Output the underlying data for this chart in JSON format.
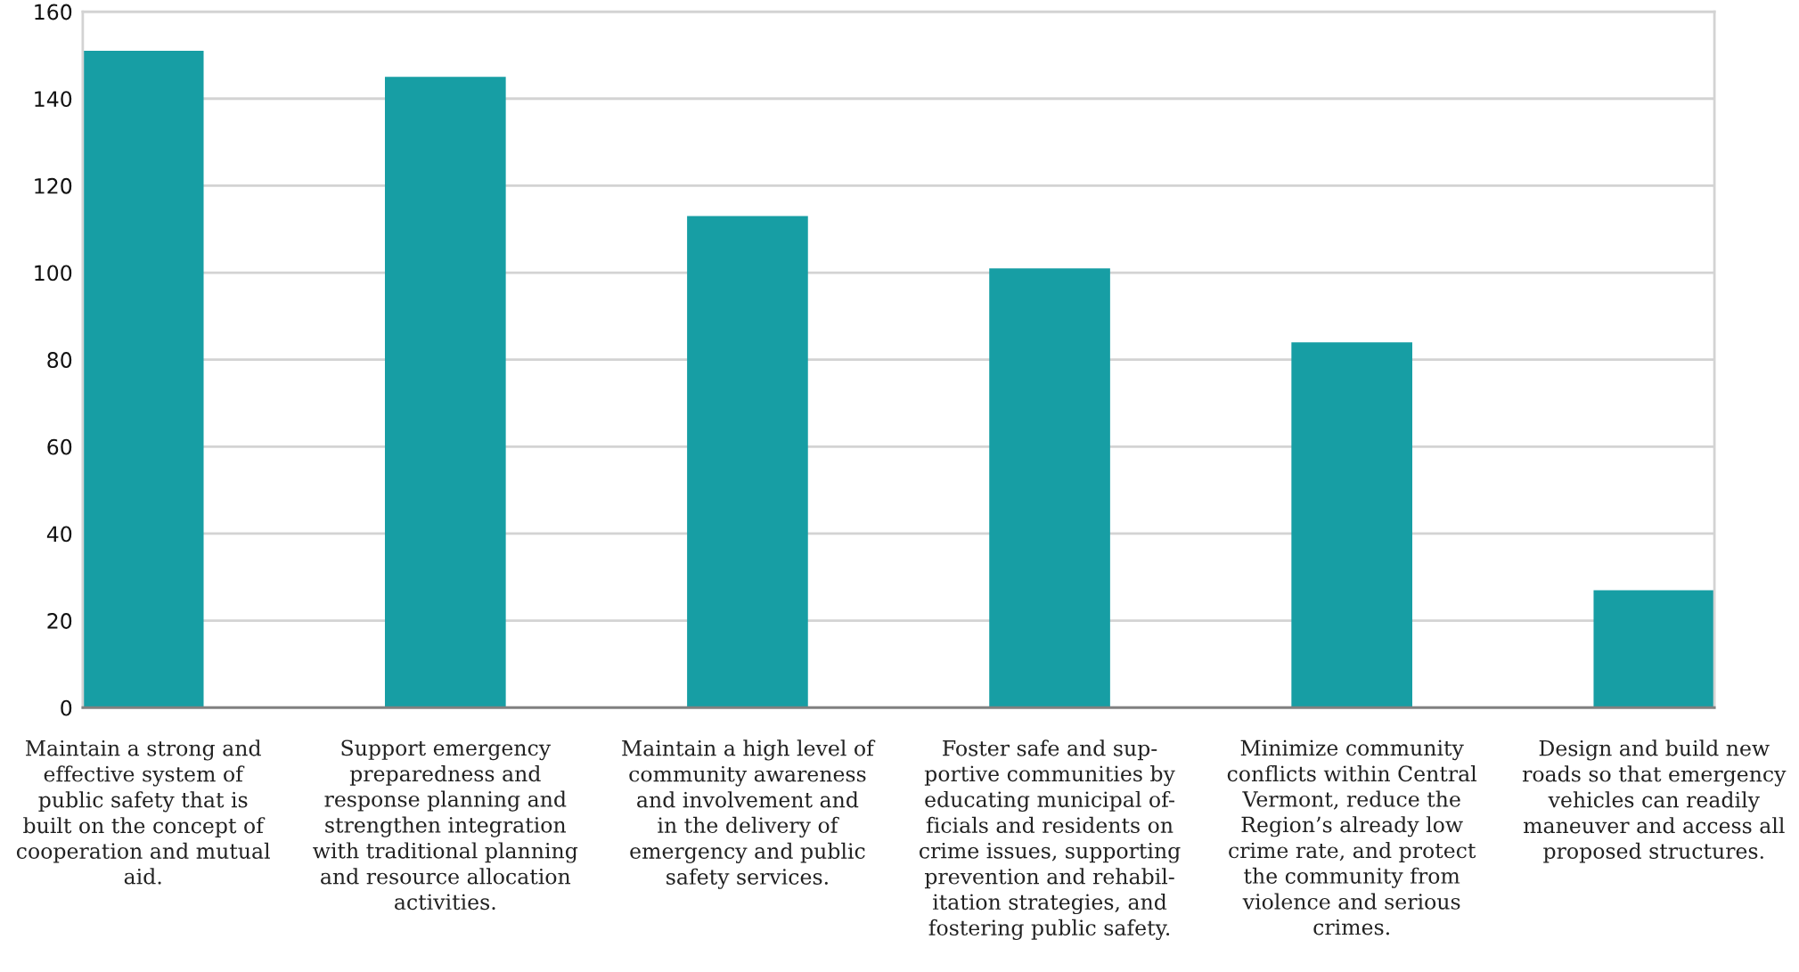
{
  "chart_data": {
    "type": "bar",
    "categories": [
      "Maintain a strong and\neffective system of\npublic safety that is\nbuilt on the concept of\ncooperation and mutual\naid.",
      "Support emergency\npreparedness and\nresponse planning and\nstrengthen integration\nwith traditional planning\nand resource allocation\nactivities.",
      "Maintain a high level of\ncommunity awareness\nand involvement and\nin the delivery of\nemergency and public\nsafety services.",
      "Foster safe and sup-\nportive communities by\neducating municipal of-\nficials and residents on\ncrime issues, supporting\nprevention and rehabil-\nitation strategies, and\nfostering public safety.",
      "Minimize community\nconflicts within Central\nVermont, reduce the\nRegion’s already low\ncrime rate, and protect\nthe community from\nviolence and serious\ncrimes.",
      "Design and build new\nroads so that emergency\nvehicles can readily\nmaneuver and access all\nproposed structures."
    ],
    "values": [
      151,
      145,
      113,
      101,
      84,
      27
    ],
    "color": "#179ea4",
    "ylim": [
      0,
      160
    ],
    "yticks": [
      0,
      20,
      40,
      60,
      80,
      100,
      120,
      140,
      160
    ],
    "grid": "y"
  }
}
